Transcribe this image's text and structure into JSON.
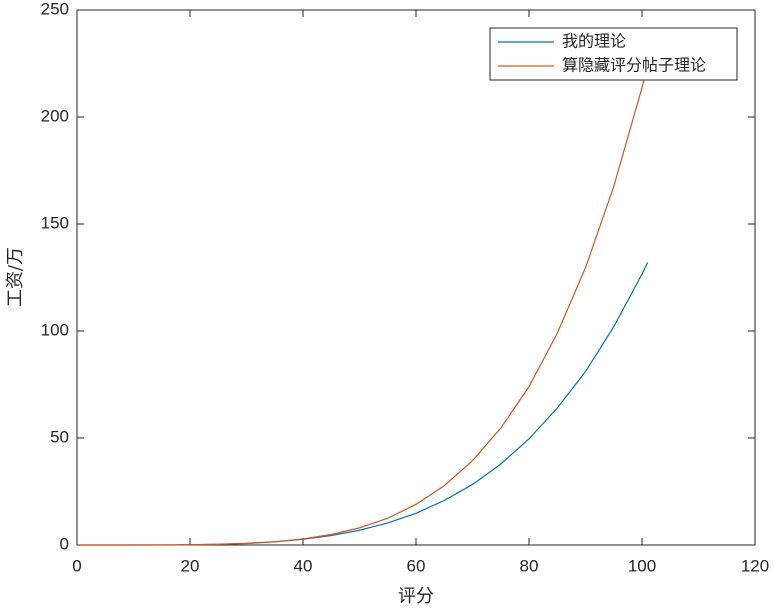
{
  "chart_data": {
    "type": "line",
    "xlabel": "评分",
    "ylabel": "工资/万",
    "x": [
      0,
      5,
      10,
      15,
      20,
      25,
      30,
      35,
      40,
      45,
      50,
      55,
      60,
      65,
      70,
      75,
      80,
      85,
      90,
      95,
      100,
      101
    ],
    "series": [
      {
        "name": "我的理论",
        "color": "#0072bd",
        "values": [
          0,
          0,
          0,
          0.03,
          0.15,
          0.38,
          0.8,
          1.5,
          2.7,
          4.4,
          6.9,
          10.3,
          14.8,
          20.8,
          28.3,
          37.8,
          49.6,
          64,
          81,
          102,
          126.6,
          132
        ]
      },
      {
        "name": "算隐藏评分帖子理论",
        "color": "#d95319",
        "values": [
          0,
          0,
          0,
          0,
          0.1,
          0.3,
          0.7,
          1.5,
          2.8,
          4.9,
          8,
          12.5,
          19,
          27.7,
          39.4,
          54.6,
          74,
          98.9,
          129.6,
          167.5,
          213.7,
          224
        ]
      }
    ],
    "xlim": [
      0,
      120
    ],
    "xticks": [
      0,
      20,
      40,
      60,
      80,
      100,
      120
    ],
    "ylim": [
      0,
      250
    ],
    "yticks": [
      0,
      50,
      100,
      150,
      200,
      250
    ],
    "legend": "upper right"
  }
}
